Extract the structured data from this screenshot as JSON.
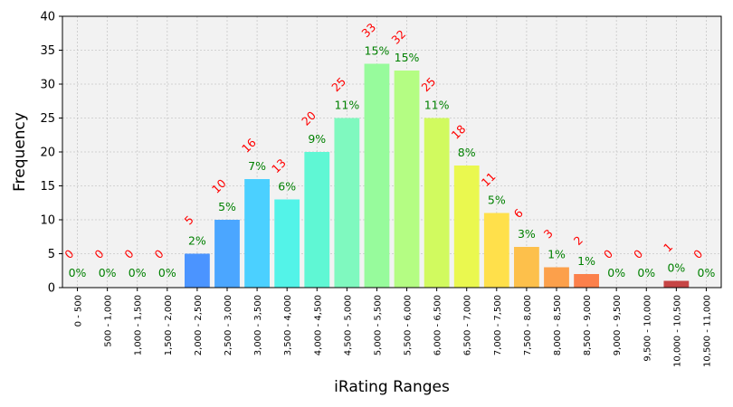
{
  "chart_data": {
    "type": "bar",
    "xlabel": "iRating Ranges",
    "ylabel": "Frequency",
    "ylim": [
      0,
      40
    ],
    "yticks": [
      0,
      5,
      10,
      15,
      20,
      25,
      30,
      35,
      40
    ],
    "grid": true,
    "categories": [
      "0 - 500",
      "500 - 1,000",
      "1,000 - 1,500",
      "1,500 - 2,000",
      "2,000 - 2,500",
      "2,500 - 3,000",
      "3,000 - 3,500",
      "3,500 - 4,000",
      "4,000 - 4,500",
      "4,500 - 5,000",
      "5,000 - 5,500",
      "5,500 - 6,000",
      "6,000 - 6,500",
      "6,500 - 7,000",
      "7,000 - 7,500",
      "7,500 - 8,000",
      "8,000 - 8,500",
      "8,500 - 9,000",
      "9,000 - 9,500",
      "9,500 - 10,000",
      "10,000 - 10,500",
      "10,500 - 11,000"
    ],
    "values": [
      0,
      0,
      0,
      0,
      5,
      10,
      16,
      13,
      20,
      25,
      33,
      32,
      25,
      18,
      11,
      6,
      3,
      2,
      0,
      0,
      1,
      0
    ],
    "percent_labels": [
      "0%",
      "0%",
      "0%",
      "0%",
      "2%",
      "5%",
      "7%",
      "6%",
      "9%",
      "11%",
      "15%",
      "15%",
      "11%",
      "8%",
      "5%",
      "3%",
      "1%",
      "1%",
      "0%",
      "0%",
      "0%",
      "0%"
    ],
    "colors": [
      "#4b4bff",
      "#4b5dff",
      "#4b6fff",
      "#4b82ff",
      "#4b94ff",
      "#4ba6ff",
      "#4bd0ff",
      "#53f3e8",
      "#5ff7d4",
      "#7ff9bf",
      "#97fb9c",
      "#b4fd83",
      "#d1fa5f",
      "#eaf84f",
      "#ffe04b",
      "#fdc04b",
      "#fca04b",
      "#fb804b",
      "#f9604b",
      "#f7504b",
      "#c64545",
      "#b03a3a"
    ],
    "count_label_color": "#ff0000",
    "percent_label_color": "#008000"
  }
}
